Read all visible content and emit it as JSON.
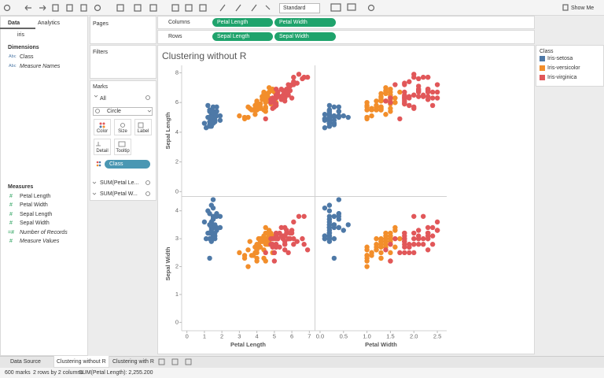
{
  "chart_data": {
    "type": "scatter",
    "title": "Clustering without R",
    "columns": [
      "Petal Length",
      "Petal Width"
    ],
    "rows": [
      "Sepal Length",
      "Sepal Width"
    ],
    "xlim": [
      [
        -0.3,
        7.3
      ],
      [
        -0.1,
        2.7
      ]
    ],
    "xticks": [
      [
        0,
        1,
        2,
        3,
        4,
        5,
        6,
        7
      ],
      [
        {
          "value": 0,
          "label": "0.0"
        },
        0.5,
        {
          "value": 1,
          "label": "1.0"
        },
        1.5,
        {
          "value": 2,
          "label": "2.0"
        },
        2.5
      ]
    ],
    "ylim": [
      [
        -0.3,
        8.5
      ],
      [
        -0.3,
        4.5
      ]
    ],
    "yticks": [
      [
        0,
        2,
        4,
        6,
        8
      ],
      [
        0,
        1,
        2,
        3,
        4
      ]
    ],
    "legend_title": "Class",
    "legend_position": "right",
    "series": [
      {
        "name": "Iris-setosa",
        "color": "#4e79a7",
        "x": [
          [
            1.4,
            1.4,
            1.3,
            1.5,
            1.4,
            1.7,
            1.4,
            1.5,
            1.4,
            1.5,
            1.5,
            1.6,
            1.4,
            1.1,
            1.2,
            1.5,
            1.3,
            1.4,
            1.7,
            1.5,
            1.7,
            1.5,
            1.0,
            1.7,
            1.9,
            1.6,
            1.6,
            1.5,
            1.4,
            1.6,
            1.6,
            1.5,
            1.5,
            1.4,
            1.5,
            1.2,
            1.3,
            1.5,
            1.3,
            1.5,
            1.3,
            1.3,
            1.3,
            1.6,
            1.9,
            1.4,
            1.6,
            1.4,
            1.5,
            1.4
          ],
          [
            0.2,
            0.2,
            0.2,
            0.2,
            0.2,
            0.4,
            0.3,
            0.2,
            0.2,
            0.1,
            0.2,
            0.2,
            0.1,
            0.1,
            0.2,
            0.4,
            0.4,
            0.3,
            0.3,
            0.3,
            0.2,
            0.4,
            0.2,
            0.5,
            0.2,
            0.2,
            0.4,
            0.2,
            0.2,
            0.2,
            0.2,
            0.4,
            0.1,
            0.2,
            0.1,
            0.2,
            0.2,
            0.1,
            0.2,
            0.2,
            0.3,
            0.3,
            0.2,
            0.6,
            0.4,
            0.3,
            0.2,
            0.2,
            0.2,
            0.2
          ]
        ],
        "y": [
          [
            5.1,
            4.9,
            4.7,
            4.6,
            5.0,
            5.4,
            4.6,
            5.0,
            4.4,
            4.9,
            5.4,
            4.8,
            4.8,
            4.3,
            5.8,
            5.7,
            5.4,
            5.1,
            5.7,
            5.1,
            5.4,
            5.1,
            4.6,
            5.1,
            4.8,
            5.0,
            5.0,
            5.2,
            5.2,
            4.7,
            4.8,
            5.4,
            5.2,
            5.5,
            4.9,
            5.0,
            5.5,
            4.9,
            4.4,
            5.1,
            5.0,
            4.5,
            4.4,
            5.0,
            5.1,
            4.8,
            5.1,
            4.6,
            5.3,
            5.0
          ],
          [
            3.5,
            3.0,
            3.2,
            3.1,
            3.6,
            3.9,
            3.4,
            3.4,
            2.9,
            3.1,
            3.7,
            3.4,
            3.0,
            3.0,
            4.0,
            4.4,
            3.9,
            3.5,
            3.8,
            3.8,
            3.4,
            3.7,
            3.6,
            3.3,
            3.4,
            3.0,
            3.4,
            3.5,
            3.4,
            3.2,
            3.1,
            3.4,
            4.1,
            4.2,
            3.1,
            3.2,
            3.5,
            3.1,
            3.0,
            3.4,
            3.5,
            2.3,
            3.2,
            3.5,
            3.8,
            3.0,
            3.8,
            3.2,
            3.7,
            3.3
          ]
        ]
      },
      {
        "name": "Iris-versicolor",
        "color": "#f28e2b",
        "x": [
          [
            4.7,
            4.5,
            4.9,
            4.0,
            4.6,
            4.5,
            4.7,
            3.3,
            4.6,
            3.9,
            3.5,
            4.2,
            4.0,
            4.7,
            3.6,
            4.4,
            4.5,
            4.1,
            4.5,
            3.9,
            4.8,
            4.0,
            4.9,
            4.7,
            4.3,
            4.4,
            4.8,
            5.0,
            4.5,
            3.5,
            3.8,
            3.7,
            3.9,
            5.1,
            4.5,
            4.5,
            4.7,
            4.4,
            4.1,
            4.0,
            4.4,
            4.6,
            4.0,
            3.3,
            4.2,
            4.2,
            4.2,
            4.3,
            3.0,
            4.1
          ],
          [
            1.4,
            1.5,
            1.5,
            1.3,
            1.5,
            1.3,
            1.6,
            1.0,
            1.3,
            1.4,
            1.0,
            1.5,
            1.0,
            1.4,
            1.3,
            1.4,
            1.5,
            1.0,
            1.5,
            1.1,
            1.8,
            1.3,
            1.5,
            1.2,
            1.3,
            1.4,
            1.4,
            1.7,
            1.5,
            1.0,
            1.1,
            1.0,
            1.2,
            1.6,
            1.5,
            1.6,
            1.5,
            1.3,
            1.3,
            1.3,
            1.2,
            1.4,
            1.2,
            1.0,
            1.3,
            1.2,
            1.3,
            1.3,
            1.1,
            1.3
          ]
        ],
        "y": [
          [
            7.0,
            6.4,
            6.9,
            5.5,
            6.5,
            5.7,
            6.3,
            4.9,
            6.6,
            5.2,
            5.0,
            5.9,
            6.0,
            6.1,
            5.6,
            6.7,
            5.6,
            5.8,
            6.2,
            5.6,
            5.9,
            6.1,
            6.3,
            6.1,
            6.4,
            6.6,
            6.8,
            6.7,
            6.0,
            5.7,
            5.5,
            5.5,
            5.8,
            6.0,
            5.4,
            6.0,
            6.7,
            6.3,
            5.6,
            5.5,
            5.5,
            6.1,
            5.8,
            5.0,
            5.6,
            5.7,
            5.7,
            6.2,
            5.1,
            5.7
          ],
          [
            3.2,
            3.2,
            3.1,
            2.3,
            2.8,
            2.8,
            3.3,
            2.4,
            2.9,
            2.7,
            2.0,
            3.0,
            2.2,
            2.9,
            2.9,
            3.1,
            3.0,
            2.7,
            2.2,
            2.5,
            3.2,
            2.8,
            2.5,
            2.8,
            2.9,
            3.0,
            2.8,
            3.0,
            2.9,
            2.6,
            2.4,
            2.4,
            2.7,
            2.7,
            3.0,
            3.4,
            3.1,
            2.3,
            3.0,
            2.5,
            2.6,
            3.0,
            2.6,
            2.3,
            2.7,
            3.0,
            2.9,
            2.9,
            2.5,
            2.8
          ]
        ]
      },
      {
        "name": "Iris-virginica",
        "color": "#e15759",
        "x": [
          [
            6.0,
            5.1,
            5.9,
            5.6,
            5.8,
            6.6,
            4.5,
            6.3,
            5.8,
            6.1,
            5.1,
            5.3,
            5.5,
            5.0,
            5.1,
            5.3,
            5.5,
            6.7,
            6.9,
            5.0,
            5.7,
            4.9,
            6.7,
            4.9,
            5.7,
            6.0,
            4.8,
            4.9,
            5.6,
            5.8,
            6.1,
            6.4,
            5.6,
            5.1,
            5.6,
            6.1,
            5.6,
            5.5,
            4.8,
            5.4,
            5.6,
            5.1,
            5.1,
            5.9,
            5.7,
            5.2,
            5.0,
            5.2,
            5.4,
            5.1
          ],
          [
            2.5,
            1.9,
            2.1,
            1.8,
            2.2,
            2.1,
            1.7,
            1.8,
            1.8,
            2.5,
            2.0,
            1.9,
            2.1,
            2.0,
            2.4,
            2.3,
            1.8,
            2.2,
            2.3,
            1.5,
            2.3,
            2.0,
            2.0,
            1.8,
            2.1,
            1.8,
            1.8,
            1.8,
            2.1,
            1.6,
            1.9,
            2.0,
            2.2,
            1.5,
            1.4,
            2.3,
            2.4,
            1.8,
            1.8,
            2.1,
            2.4,
            2.3,
            1.9,
            2.3,
            2.5,
            2.3,
            1.9,
            2.0,
            2.3,
            1.8
          ]
        ],
        "y": [
          [
            6.3,
            5.8,
            7.1,
            6.3,
            6.5,
            7.6,
            4.9,
            7.3,
            6.7,
            7.2,
            6.5,
            6.4,
            6.8,
            5.7,
            5.8,
            6.4,
            6.5,
            7.7,
            7.7,
            6.0,
            6.9,
            5.6,
            7.7,
            6.3,
            6.7,
            7.2,
            6.2,
            6.1,
            6.4,
            7.2,
            7.4,
            7.9,
            6.4,
            6.3,
            6.1,
            7.7,
            6.3,
            6.4,
            6.0,
            6.9,
            6.7,
            6.9,
            5.8,
            6.8,
            6.7,
            6.7,
            6.3,
            6.5,
            6.2,
            5.9
          ],
          [
            3.3,
            2.7,
            3.0,
            2.9,
            3.0,
            3.0,
            2.5,
            2.9,
            2.5,
            3.6,
            3.2,
            2.7,
            3.0,
            2.5,
            2.8,
            3.2,
            3.0,
            3.8,
            2.6,
            2.2,
            3.2,
            2.8,
            2.8,
            2.7,
            3.3,
            3.2,
            2.8,
            3.0,
            2.8,
            3.0,
            2.8,
            3.8,
            2.8,
            2.8,
            2.6,
            3.0,
            3.4,
            3.1,
            3.0,
            3.1,
            3.1,
            3.1,
            2.7,
            3.2,
            3.3,
            3.0,
            2.5,
            3.0,
            3.4,
            3.0
          ]
        ]
      }
    ]
  },
  "ui": {
    "toolbar": {
      "view": "Standard",
      "show_me": "Show Me"
    },
    "data_pane": {
      "tabs": [
        "Data",
        "Analytics"
      ],
      "source": "iris",
      "dimensions": {
        "title": "Dimensions",
        "fields": [
          {
            "icon": "Abc",
            "name": "Class"
          },
          {
            "icon": "Abc",
            "name": "Measure Names"
          }
        ]
      },
      "measures": {
        "title": "Measures",
        "fields": [
          {
            "icon": "#",
            "name": "Petal Length"
          },
          {
            "icon": "#",
            "name": "Petal Width"
          },
          {
            "icon": "#",
            "name": "Sepal Length"
          },
          {
            "icon": "#",
            "name": "Sepal Width"
          },
          {
            "icon": "=#",
            "name": "Number of Records"
          },
          {
            "icon": "#",
            "name": "Measure Values"
          }
        ]
      }
    },
    "shelves": {
      "pages": "Pages",
      "filters": "Filters",
      "columns": "Columns",
      "rows": "Rows"
    },
    "marks": {
      "title": "Marks",
      "all": "All",
      "mark_type": "Circle",
      "buttons": [
        "Color",
        "Size",
        "Label",
        "Detail",
        "Tooltip"
      ],
      "color_field": "Class",
      "measures": [
        "SUM(Petal Le...",
        "SUM(Petal W..."
      ]
    },
    "tabs": [
      "Data Source",
      "Clustering without R",
      "Clustering with R"
    ],
    "status": [
      "600 marks",
      "2 rows by 2 columns",
      "SUM(Petal Length): 2,255.200"
    ]
  }
}
